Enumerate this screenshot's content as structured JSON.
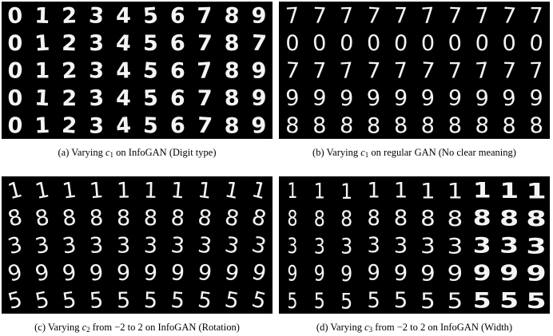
{
  "figures": [
    {
      "id": "a",
      "caption": {
        "prefix": "(a) Varying ",
        "var": "c",
        "sub": "1",
        "suffix": " on InfoGAN (Digit type)"
      },
      "stroke": "bold",
      "rows": [
        [
          "0",
          "1",
          "2",
          "3",
          "4",
          "5",
          "6",
          "7",
          "8",
          "9"
        ],
        [
          "0",
          "1",
          "2",
          "3",
          "4",
          "5",
          "6",
          "7",
          "8",
          "7"
        ],
        [
          "0",
          "1",
          "2",
          "3",
          "4",
          "5",
          "6",
          "7",
          "8",
          "9"
        ],
        [
          "0",
          "1",
          "2",
          "3",
          "4",
          "5",
          "6",
          "7",
          "8",
          "9"
        ],
        [
          "0",
          "1",
          "2",
          "3",
          "4",
          "5",
          "6",
          "7",
          "8",
          "9"
        ]
      ]
    },
    {
      "id": "b",
      "caption": {
        "prefix": "(b) Varying ",
        "var": "c",
        "sub": "1",
        "suffix": " on regular GAN (No clear meaning)"
      },
      "stroke": "normal",
      "rows": [
        [
          "7",
          "7",
          "7",
          "7",
          "7",
          "7",
          "7",
          "7",
          "7",
          "7"
        ],
        [
          "0",
          "0",
          "0",
          "0",
          "0",
          "0",
          "0",
          "0",
          "0",
          "0"
        ],
        [
          "7",
          "7",
          "7",
          "7",
          "7",
          "7",
          "7",
          "7",
          "7",
          "7"
        ],
        [
          "9",
          "9",
          "9",
          "9",
          "9",
          "9",
          "9",
          "9",
          "9",
          "9"
        ],
        [
          "8",
          "8",
          "8",
          "8",
          "8",
          "8",
          "8",
          "8",
          "8",
          "8"
        ]
      ]
    },
    {
      "id": "c",
      "caption": {
        "prefix": "(c) Varying ",
        "var": "c",
        "sub": "2",
        "suffix": " from −2 to 2 on InfoGAN (Rotation)"
      },
      "stroke": "normal",
      "variation": "rotation",
      "rows": [
        [
          "1",
          "1",
          "1",
          "1",
          "1",
          "1",
          "1",
          "1",
          "1",
          "1"
        ],
        [
          "8",
          "8",
          "8",
          "8",
          "8",
          "8",
          "8",
          "8",
          "8",
          "8"
        ],
        [
          "3",
          "3",
          "3",
          "3",
          "3",
          "3",
          "3",
          "3",
          "3",
          "3"
        ],
        [
          "9",
          "9",
          "9",
          "9",
          "9",
          "9",
          "9",
          "9",
          "9",
          "9"
        ],
        [
          "5",
          "5",
          "5",
          "5",
          "5",
          "5",
          "5",
          "5",
          "5",
          "5"
        ]
      ]
    },
    {
      "id": "d",
      "caption": {
        "prefix": "(d) Varying ",
        "var": "c",
        "sub": "3",
        "suffix": " from −2 to 2 on InfoGAN (Width)"
      },
      "stroke": "normal",
      "variation": "width",
      "rows": [
        [
          "1",
          "1",
          "1",
          "1",
          "1",
          "1",
          "1",
          "1",
          "1",
          "1"
        ],
        [
          "8",
          "8",
          "8",
          "8",
          "8",
          "8",
          "8",
          "8",
          "8",
          "8"
        ],
        [
          "3",
          "3",
          "3",
          "3",
          "3",
          "3",
          "3",
          "3",
          "3",
          "3"
        ],
        [
          "9",
          "9",
          "9",
          "9",
          "9",
          "9",
          "9",
          "9",
          "9",
          "9"
        ],
        [
          "5",
          "5",
          "5",
          "5",
          "5",
          "5",
          "5",
          "5",
          "5",
          "5"
        ]
      ]
    }
  ]
}
